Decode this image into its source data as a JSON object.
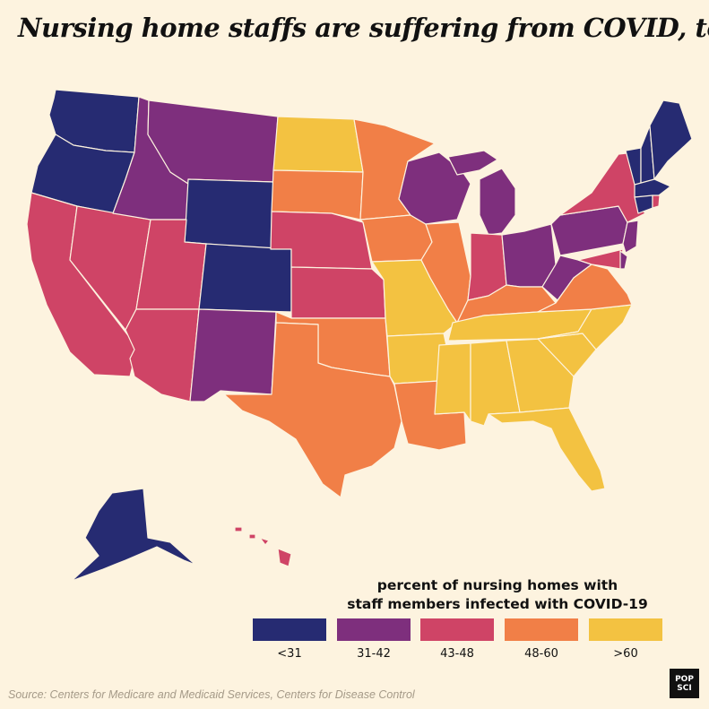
{
  "title": "Nursing home staffs are suffering from COVID, too",
  "legend": {
    "title_line1": "percent of nursing homes with",
    "title_line2": "staff members infected with COVID-19",
    "bins": [
      {
        "label": "<31",
        "color": "#262b72"
      },
      {
        "label": "31-42",
        "color": "#7e2f7d"
      },
      {
        "label": "43-48",
        "color": "#cf4466"
      },
      {
        "label": "48-60",
        "color": "#f17f47"
      },
      {
        "label": ">60",
        "color": "#f3c241"
      }
    ]
  },
  "states": {
    "WA": "<31",
    "OR": "<31",
    "CA": "43-48",
    "NV": "43-48",
    "ID": "31-42",
    "MT": "31-42",
    "WY": "<31",
    "UT": "43-48",
    "CO": "<31",
    "AZ": "43-48",
    "NM": "31-42",
    "ND": ">60",
    "SD": "48-60",
    "NE": "43-48",
    "KS": "43-48",
    "OK": "48-60",
    "TX": "48-60",
    "MN": "48-60",
    "IA": "48-60",
    "MO": ">60",
    "AR": ">60",
    "LA": "48-60",
    "WI": "31-42",
    "IL": "48-60",
    "MI": "31-42",
    "IN": "43-48",
    "OH": "31-42",
    "KY": "48-60",
    "TN": ">60",
    "MS": ">60",
    "AL": ">60",
    "GA": ">60",
    "FL": ">60",
    "SC": ">60",
    "NC": ">60",
    "VA": "48-60",
    "WV": "31-42",
    "PA": "31-42",
    "NY": "43-48",
    "NJ": "31-42",
    "DE": "31-42",
    "MD": "43-48",
    "CT": "<31",
    "RI": "43-48",
    "MA": "<31",
    "VT": "<31",
    "NH": "<31",
    "ME": "<31",
    "AK": "<31",
    "HI": "43-48"
  },
  "source": "Source: Centers for Medicare and Medicaid Services, Centers for Disease Control",
  "logo": {
    "line1": "POP",
    "line2": "SCI"
  }
}
